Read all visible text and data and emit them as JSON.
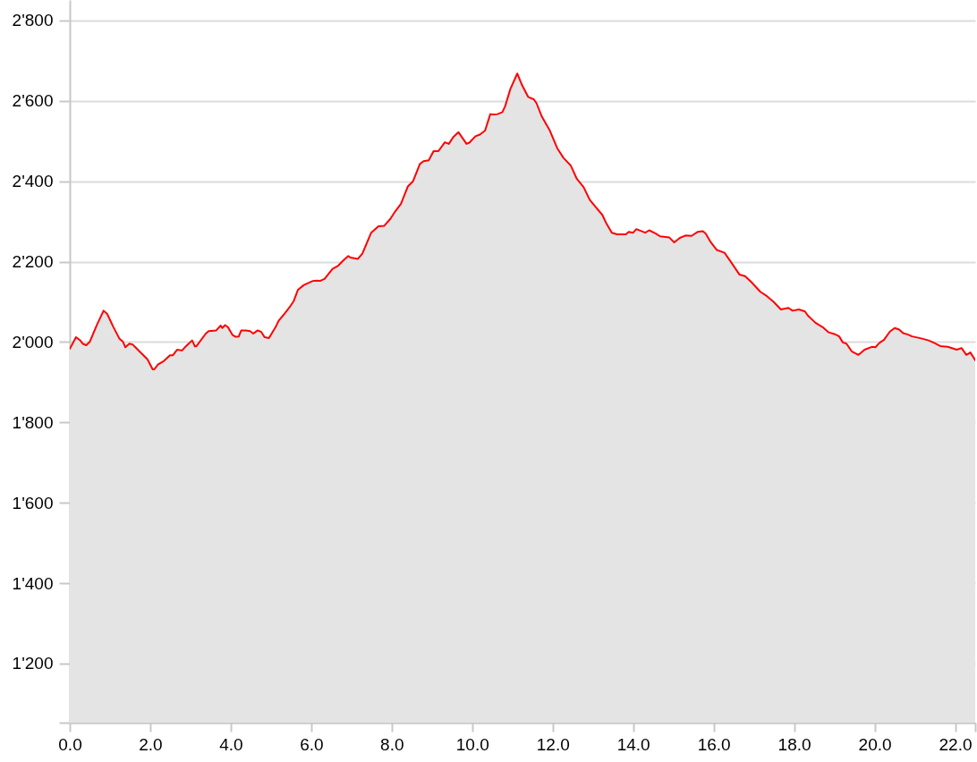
{
  "chart_data": {
    "type": "area",
    "x": [
      0,
      0.155,
      0.25,
      0.32,
      0.41,
      0.5,
      0.67,
      0.84,
      0.93,
      1.08,
      1.23,
      1.32,
      1.38,
      1.48,
      1.56,
      1.63,
      1.74,
      1.93,
      2.06,
      2.1,
      2.19,
      2.34,
      2.49,
      2.56,
      2.67,
      2.79,
      2.89,
      3.04,
      3.11,
      3.15,
      3.38,
      3.45,
      3.64,
      3.75,
      3.79,
      3.86,
      3.93,
      4.04,
      4.12,
      4.2,
      4.26,
      4.37,
      4.48,
      4.56,
      4.67,
      4.76,
      4.84,
      4.95,
      5.12,
      5.19,
      5.3,
      5.45,
      5.56,
      5.67,
      5.82,
      6.04,
      6.15,
      6.22,
      6.33,
      6.53,
      6.67,
      6.82,
      6.92,
      6.98,
      7.16,
      7.27,
      7.49,
      7.67,
      7.81,
      7.97,
      8.08,
      8.23,
      8.4,
      8.53,
      8.7,
      8.79,
      8.92,
      9.04,
      9.16,
      9.32,
      9.42,
      9.53,
      9.66,
      9.86,
      9.93,
      10.08,
      10.19,
      10.32,
      10.45,
      10.52,
      10.63,
      10.75,
      10.82,
      10.95,
      11.12,
      11.24,
      11.39,
      11.53,
      11.6,
      11.73,
      11.93,
      12.12,
      12.27,
      12.45,
      12.6,
      12.77,
      12.92,
      13.1,
      13.23,
      13.34,
      13.47,
      13.6,
      13.82,
      13.89,
      14.0,
      14.08,
      14.23,
      14.3,
      14.4,
      14.56,
      14.67,
      14.9,
      15.02,
      15.16,
      15.3,
      15.45,
      15.6,
      15.73,
      15.8,
      15.93,
      16.08,
      16.27,
      16.41,
      16.64,
      16.78,
      16.93,
      17.16,
      17.3,
      17.49,
      17.67,
      17.86,
      17.96,
      18.12,
      18.27,
      18.34,
      18.53,
      18.71,
      18.86,
      19.0,
      19.12,
      19.21,
      19.3,
      19.43,
      19.6,
      19.75,
      19.93,
      20.02,
      20.12,
      20.23,
      20.38,
      20.5,
      20.61,
      20.71,
      20.82,
      20.93,
      21.16,
      21.34,
      21.48,
      21.63,
      21.82,
      22.04,
      22.16,
      22.28,
      22.38,
      22.5
    ],
    "series": [
      {
        "color": "#ff0000",
        "values": [
          1983,
          2012,
          2005,
          1996,
          1992,
          2001,
          2042,
          2078,
          2070,
          2038,
          2009,
          2001,
          1987,
          1996,
          1994,
          1987,
          1976,
          1957,
          1932,
          1932,
          1944,
          1953,
          1967,
          1967,
          1981,
          1979,
          1990,
          2004,
          1989,
          1990,
          2021,
          2027,
          2029,
          2041,
          2035,
          2042,
          2037,
          2018,
          2013,
          2014,
          2029,
          2029,
          2027,
          2021,
          2029,
          2025,
          2012,
          2010,
          2038,
          2053,
          2066,
          2085,
          2101,
          2130,
          2142,
          2152,
          2153,
          2152,
          2157,
          2182,
          2190,
          2205,
          2214,
          2210,
          2207,
          2220,
          2272,
          2288,
          2289,
          2307,
          2324,
          2344,
          2387,
          2400,
          2443,
          2450,
          2452,
          2475,
          2475,
          2497,
          2493,
          2510,
          2522,
          2493,
          2496,
          2512,
          2516,
          2526,
          2567,
          2566,
          2567,
          2572,
          2587,
          2630,
          2668,
          2639,
          2610,
          2604,
          2594,
          2561,
          2526,
          2481,
          2458,
          2439,
          2406,
          2385,
          2354,
          2332,
          2317,
          2294,
          2272,
          2268,
          2268,
          2274,
          2272,
          2281,
          2275,
          2272,
          2278,
          2270,
          2263,
          2260,
          2248,
          2259,
          2265,
          2264,
          2274,
          2276,
          2270,
          2248,
          2229,
          2222,
          2202,
          2168,
          2164,
          2150,
          2125,
          2116,
          2100,
          2081,
          2085,
          2078,
          2081,
          2076,
          2066,
          2048,
          2037,
          2024,
          2020,
          2014,
          1999,
          1996,
          1977,
          1968,
          1981,
          1988,
          1987,
          1998,
          2005,
          2026,
          2035,
          2031,
          2022,
          2019,
          2014,
          2009,
          2004,
          1998,
          1990,
          1988,
          1981,
          1985,
          1968,
          1974,
          1955
        ]
      }
    ],
    "xlim": [
      0,
      22.5
    ],
    "xticks": [
      {
        "value": 0,
        "label": "0.0"
      },
      {
        "value": 2,
        "label": "2.0"
      },
      {
        "value": 4,
        "label": "4.0"
      },
      {
        "value": 6,
        "label": "6.0"
      },
      {
        "value": 8,
        "label": "8.0"
      },
      {
        "value": 10,
        "label": "10.0"
      },
      {
        "value": 12,
        "label": "12.0"
      },
      {
        "value": 14,
        "label": "14.0"
      },
      {
        "value": 16,
        "label": "16.0"
      },
      {
        "value": 18,
        "label": "18.0"
      },
      {
        "value": 20,
        "label": "20.0"
      },
      {
        "value": 22,
        "label": "22.0"
      },
      {
        "value": 22.5,
        "label": null
      }
    ],
    "ylim": [
      1053,
      2851
    ],
    "yticks": [
      {
        "value": 1053,
        "label": null
      },
      {
        "value": 1200,
        "label": "1'200"
      },
      {
        "value": 1400,
        "label": "1'400"
      },
      {
        "value": 1600,
        "label": "1'600"
      },
      {
        "value": 1800,
        "label": "1'800"
      },
      {
        "value": 2000,
        "label": "2'000"
      },
      {
        "value": 2200,
        "label": "2'200"
      },
      {
        "value": 2400,
        "label": "2'400"
      },
      {
        "value": 2600,
        "label": "2'600"
      },
      {
        "value": 2800,
        "label": "2'800"
      }
    ],
    "grid": "y"
  }
}
